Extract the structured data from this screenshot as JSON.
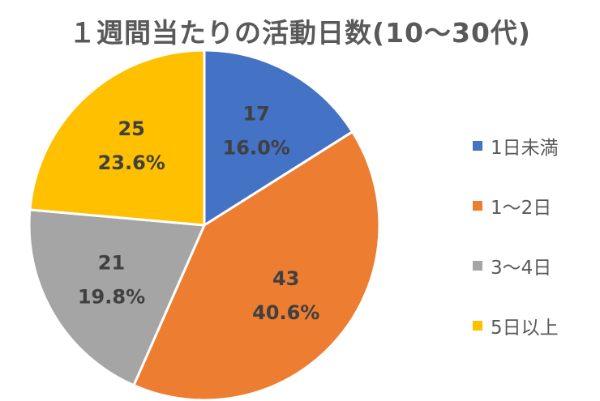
{
  "chart_data": {
    "type": "pie",
    "title": "１週間当たりの活動日数(10～30代)",
    "start_angle_deg": 0,
    "direction": "clockwise",
    "legend_position": "right",
    "slices": [
      {
        "label": "1日未満",
        "value": 17,
        "percent_label": "16.0%",
        "color": "#4472C4"
      },
      {
        "label": "1～2日",
        "value": 43,
        "percent_label": "40.6%",
        "color": "#ED7D31"
      },
      {
        "label": "3～4日",
        "value": 21,
        "percent_label": "19.8%",
        "color": "#A5A5A5"
      },
      {
        "label": "5日以上",
        "value": 25,
        "percent_label": "23.6%",
        "color": "#FFC000"
      }
    ]
  }
}
